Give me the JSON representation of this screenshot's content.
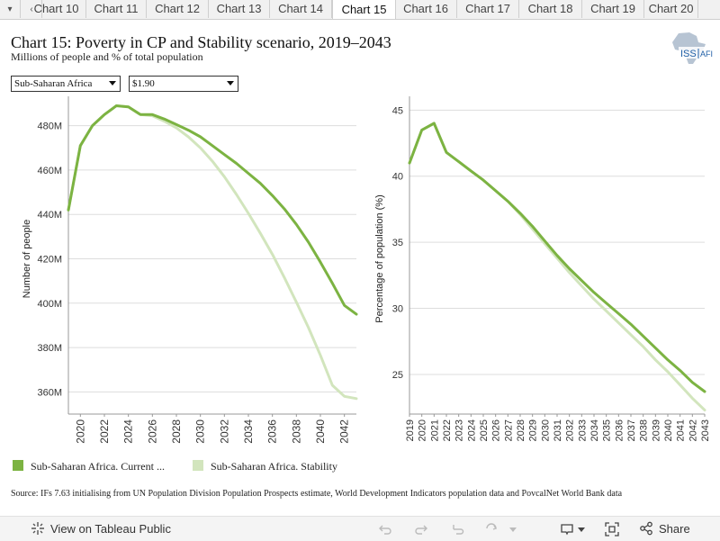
{
  "tabs": {
    "items": [
      "Chart 10",
      "Chart 11",
      "Chart 12",
      "Chart 13",
      "Chart 14",
      "Chart 15",
      "Chart 16",
      "Chart 17",
      "Chart 18",
      "Chart 19",
      "Chart 20"
    ],
    "active_index": 5
  },
  "header": {
    "title": "Chart 15: Poverty in CP and Stability scenario, 2019–2043",
    "subtitle": "Millions of people and % of total population",
    "logo_text_1": "ISS",
    "logo_text_2": "AFI"
  },
  "filters": {
    "region": "Sub-Saharan Africa",
    "threshold": "$1.90"
  },
  "legend": {
    "current": "Sub-Saharan Africa. Current ...",
    "stability": "Sub-Saharan Africa. Stability"
  },
  "source": "Source: IFs 7.63 initialising from UN Population Division Population Prospects estimate, World Development Indicators population data and PovcalNet World Bank data",
  "footer": {
    "view_label": "View on Tableau Public",
    "share_label": "Share"
  },
  "colors": {
    "current": "#7cb342",
    "stability": "#d2e5bd",
    "grid": "#dddddd",
    "axis": "#999999"
  },
  "chart_data": [
    {
      "type": "line",
      "xlabel": "",
      "ylabel": "Number of people",
      "xlim": [
        2019,
        2043
      ],
      "ylim": [
        350,
        490
      ],
      "x_ticks": [
        2020,
        2022,
        2024,
        2026,
        2028,
        2030,
        2032,
        2034,
        2036,
        2038,
        2040,
        2042
      ],
      "y_ticks": [
        360,
        380,
        400,
        420,
        440,
        460,
        480
      ],
      "y_tick_labels": [
        "360M",
        "380M",
        "400M",
        "420M",
        "440M",
        "460M",
        "480M"
      ],
      "x": [
        2019,
        2020,
        2021,
        2022,
        2023,
        2024,
        2025,
        2026,
        2027,
        2028,
        2029,
        2030,
        2031,
        2032,
        2033,
        2034,
        2035,
        2036,
        2037,
        2038,
        2039,
        2040,
        2041,
        2042,
        2043
      ],
      "series": [
        {
          "name": "Sub-Saharan Africa. Current ...",
          "values": [
            442,
            471,
            480,
            485,
            489,
            488.5,
            485,
            485,
            483,
            480.5,
            478,
            475,
            471,
            467,
            463,
            458.5,
            454,
            448.5,
            442.5,
            435.5,
            427.5,
            418.5,
            409,
            399,
            395
          ]
        },
        {
          "name": "Sub-Saharan Africa. Stability",
          "values": [
            442,
            471,
            480,
            485,
            489,
            488.5,
            485,
            484.5,
            482,
            479,
            475,
            470,
            464,
            457,
            449,
            440.5,
            431.5,
            422,
            411.5,
            400.5,
            389,
            376.5,
            363,
            358,
            357
          ]
        }
      ]
    },
    {
      "type": "line",
      "xlabel": "",
      "ylabel": "Percentage of population (%)",
      "xlim": [
        2019,
        2043
      ],
      "ylim": [
        22,
        45.5
      ],
      "x_ticks": [
        2019,
        2020,
        2021,
        2022,
        2023,
        2024,
        2025,
        2026,
        2027,
        2028,
        2029,
        2030,
        2031,
        2032,
        2033,
        2034,
        2035,
        2036,
        2037,
        2038,
        2039,
        2040,
        2041,
        2042,
        2043
      ],
      "y_ticks": [
        25,
        30,
        35,
        40,
        45
      ],
      "y_tick_labels": [
        "25",
        "30",
        "35",
        "40",
        "45"
      ],
      "x": [
        2019,
        2020,
        2021,
        2022,
        2023,
        2024,
        2025,
        2026,
        2027,
        2028,
        2029,
        2030,
        2031,
        2032,
        2033,
        2034,
        2035,
        2036,
        2037,
        2038,
        2039,
        2040,
        2041,
        2042,
        2043
      ],
      "series": [
        {
          "name": "Sub-Saharan Africa. Current ...",
          "values": [
            41.0,
            43.5,
            44.0,
            41.8,
            41.1,
            40.4,
            39.7,
            38.9,
            38.1,
            37.2,
            36.2,
            35.1,
            34.0,
            33.0,
            32.1,
            31.2,
            30.4,
            29.6,
            28.8,
            27.9,
            27.0,
            26.1,
            25.3,
            24.4,
            23.7
          ]
        },
        {
          "name": "Sub-Saharan Africa. Stability",
          "values": [
            41.0,
            43.5,
            44.0,
            41.8,
            41.1,
            40.4,
            39.7,
            38.9,
            38.1,
            37.1,
            36.0,
            34.9,
            33.8,
            32.7,
            31.7,
            30.7,
            29.8,
            28.9,
            28.0,
            27.1,
            26.1,
            25.2,
            24.2,
            23.2,
            22.3
          ]
        }
      ]
    }
  ]
}
